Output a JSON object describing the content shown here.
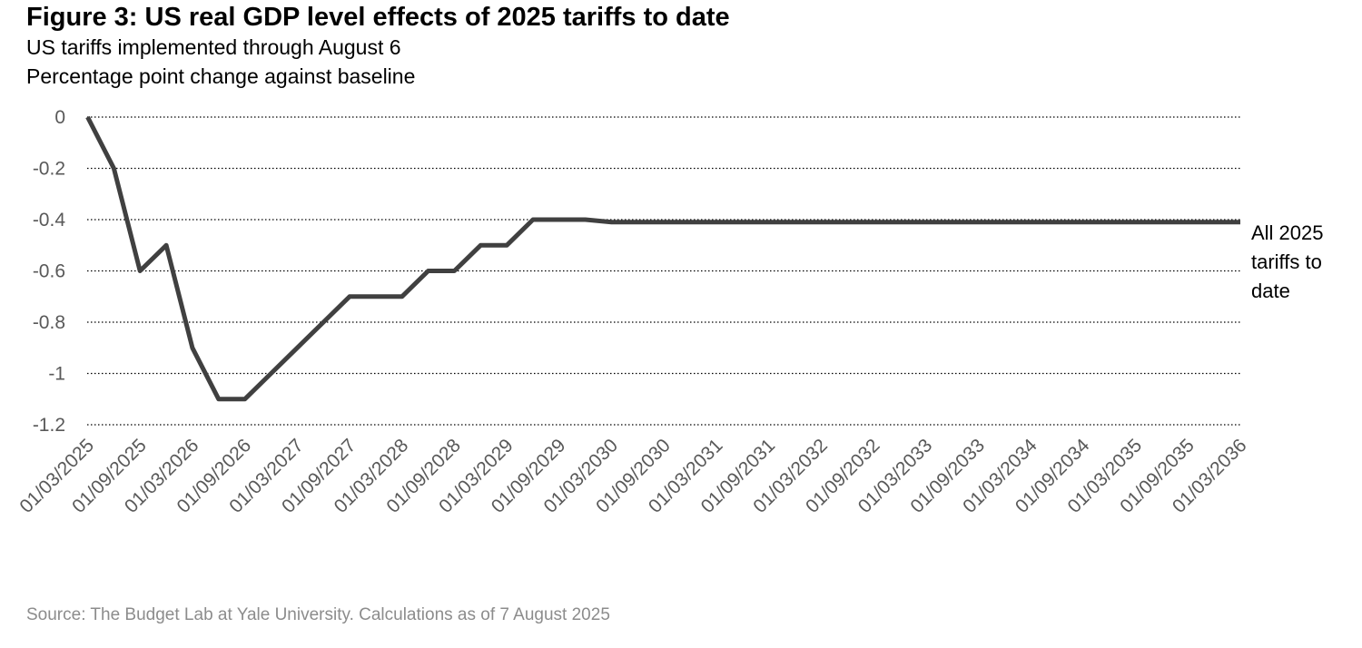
{
  "title": "Figure 3: US real GDP level effects of 2025 tariffs to date",
  "subtitle1": "US tariffs implemented through August 6",
  "subtitle2": "Percentage point change against baseline",
  "source": "Source: The Budget Lab at Yale University. Calculations as of 7 August 2025",
  "chart_data": {
    "type": "line",
    "title": "Figure 3: US real GDP level effects of 2025 tariffs to date",
    "xlabel": "",
    "ylabel": "",
    "ylim": [
      -1.2,
      0
    ],
    "yticks": [
      "0",
      "-0.2",
      "-0.4",
      "-0.6",
      "-0.8",
      "-1",
      "-1.2"
    ],
    "grid": "horizontal dotted",
    "legend": "none",
    "color": "#404040",
    "categories": [
      "01/03/2025",
      "01/09/2025",
      "01/03/2026",
      "01/09/2026",
      "01/03/2027",
      "01/09/2027",
      "01/03/2028",
      "01/09/2028",
      "01/03/2029",
      "01/09/2029",
      "01/03/2030",
      "01/09/2030",
      "01/03/2031",
      "01/09/2031",
      "01/03/2032",
      "01/09/2032",
      "01/03/2033",
      "01/09/2033",
      "01/03/2034",
      "01/09/2034",
      "01/03/2035",
      "01/09/2035",
      "01/03/2036"
    ],
    "series": [
      {
        "name": "All 2025 tariffs to date",
        "label_lines": [
          "All 2025",
          "tariffs to",
          "date"
        ],
        "x": [
          "01/03/2025",
          "01/06/2025",
          "01/09/2025",
          "01/12/2025",
          "01/03/2026",
          "01/06/2026",
          "01/09/2026",
          "01/12/2026",
          "01/03/2027",
          "01/06/2027",
          "01/09/2027",
          "01/12/2027",
          "01/03/2028",
          "01/06/2028",
          "01/09/2028",
          "01/12/2028",
          "01/03/2029",
          "01/06/2029",
          "01/09/2029",
          "01/12/2029",
          "01/03/2030",
          "01/03/2036"
        ],
        "values": [
          0,
          -0.2,
          -0.6,
          -0.5,
          -0.9,
          -1.1,
          -1.1,
          -1.0,
          -0.9,
          -0.8,
          -0.7,
          -0.7,
          -0.7,
          -0.6,
          -0.6,
          -0.5,
          -0.5,
          -0.4,
          -0.4,
          -0.4,
          -0.41,
          -0.41
        ]
      }
    ]
  }
}
